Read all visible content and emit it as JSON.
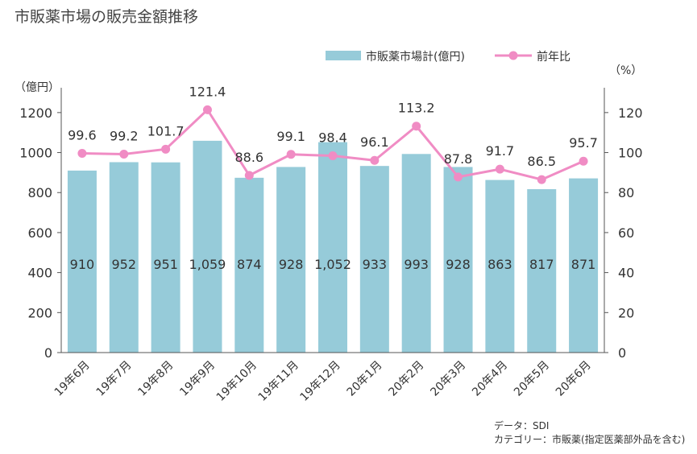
{
  "title": "市販薬市場の販売金額推移",
  "notes": {
    "source": "データ：SDI",
    "category": "カテゴリー：市販薬(指定医薬部外品を含む)"
  },
  "chart_data": {
    "type": "bar+line",
    "categories": [
      "19年6月",
      "19年7月",
      "19年8月",
      "19年9月",
      "19年10月",
      "19年11月",
      "19年12月",
      "20年1月",
      "20年2月",
      "20年3月",
      "20年4月",
      "20年5月",
      "20年6月"
    ],
    "bar_series": {
      "name": "市販薬市場計(億円)",
      "values": [
        910,
        952,
        951,
        1059,
        874,
        928,
        1052,
        933,
        993,
        928,
        863,
        817,
        871
      ],
      "labels": [
        "910",
        "952",
        "951",
        "1,059",
        "874",
        "928",
        "1,052",
        "933",
        "993",
        "928",
        "863",
        "817",
        "871"
      ],
      "color": "#96cbd9"
    },
    "line_series": {
      "name": "前年比",
      "values": [
        99.6,
        99.2,
        101.7,
        121.4,
        88.6,
        99.1,
        98.4,
        96.1,
        113.2,
        87.8,
        91.7,
        86.5,
        95.7
      ],
      "labels": [
        "99.6",
        "99.2",
        "101.7",
        "121.4",
        "88.6",
        "99.1",
        "98.4",
        "96.1",
        "113.2",
        "87.8",
        "91.7",
        "86.5",
        "95.7"
      ],
      "color": "#f08cc4"
    },
    "y_left": {
      "label": "（億円）",
      "ylim": [
        0,
        1300
      ],
      "ticks": [
        "0",
        "200",
        "400",
        "600",
        "800",
        "1000",
        "1200"
      ]
    },
    "y_right": {
      "label": "（%）",
      "ylim": [
        0,
        130
      ],
      "ticks": [
        "0",
        "20",
        "40",
        "60",
        "80",
        "100",
        "120"
      ]
    },
    "legend_position": "top-right",
    "grid": false
  }
}
